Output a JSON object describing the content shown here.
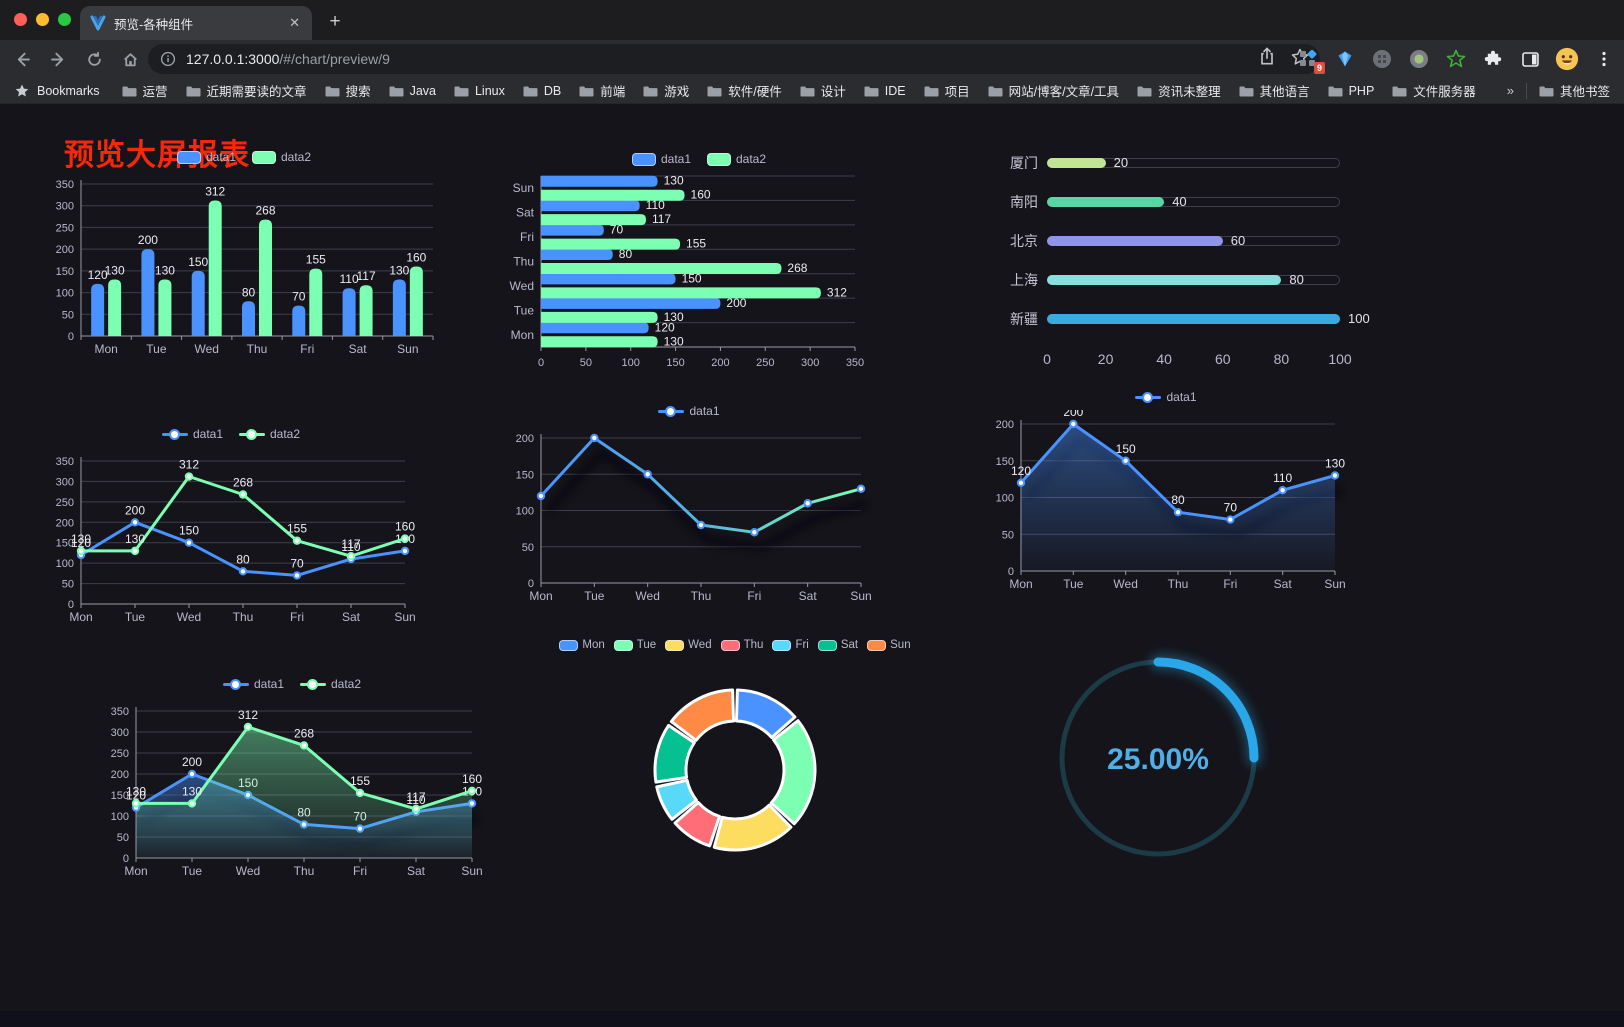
{
  "browser": {
    "tab_title": "预览-各种组件",
    "tab_close_glyph": "✕",
    "new_tab_glyph": "+",
    "url_host": "127.0.0.1:3000",
    "url_path": "/#/chart/preview/9",
    "extension_badge": "9",
    "bookmarks_label": "Bookmarks",
    "bookmarks": [
      "运营",
      "近期需要读的文章",
      "搜索",
      "Java",
      "Linux",
      "DB",
      "前端",
      "游戏",
      "软件/硬件",
      "设计",
      "IDE",
      "项目",
      "网站/博客/文章/工具",
      "资讯未整理",
      "其他语言",
      "PHP",
      "文件服务器"
    ],
    "overflow_chevron": "»",
    "other_bookmarks": "其他书签"
  },
  "page": {
    "title": "预览大屏报表",
    "title_color": "#f5270d"
  },
  "colors": {
    "accent_blue": "#4992ff",
    "accent_green": "#7cffb2",
    "axis_text": "#b9b8ce",
    "grid_line": "#3f3e4a",
    "axis_line": "#9997a8",
    "value_text": "#ececf2",
    "palette": [
      "#4992ff",
      "#7cffb2",
      "#fddd60",
      "#ff6e76",
      "#58d9f9",
      "#05c091",
      "#ff8a45"
    ]
  },
  "chart_data": [
    {
      "id": "bar-vertical",
      "type": "bar",
      "categories": [
        "Mon",
        "Tue",
        "Wed",
        "Thu",
        "Fri",
        "Sat",
        "Sun"
      ],
      "series": [
        {
          "name": "data1",
          "color": "#4992ff",
          "values": [
            120,
            200,
            150,
            80,
            70,
            110,
            130
          ]
        },
        {
          "name": "data2",
          "color": "#7cffb2",
          "values": [
            130,
            130,
            312,
            268,
            155,
            117,
            160
          ]
        }
      ],
      "ylim": [
        0,
        350
      ],
      "yticks": [
        0,
        50,
        100,
        150,
        200,
        250,
        300,
        350
      ],
      "value_labels": true,
      "legend": "pill",
      "grid": true
    },
    {
      "id": "bar-horizontal",
      "type": "bar-horizontal",
      "categories_top_to_bottom": [
        "Sun",
        "Sat",
        "Fri",
        "Thu",
        "Wed",
        "Tue",
        "Mon"
      ],
      "series": [
        {
          "name": "data1",
          "color": "#4992ff",
          "values": [
            130,
            110,
            70,
            80,
            150,
            200,
            120
          ]
        },
        {
          "name": "data2",
          "color": "#7cffb2",
          "values": [
            160,
            117,
            155,
            268,
            312,
            130,
            130
          ]
        }
      ],
      "xlim": [
        0,
        350
      ],
      "xticks": [
        0,
        50,
        100,
        150,
        200,
        250,
        300,
        350
      ],
      "value_labels": true,
      "legend": "pill",
      "grid": true
    },
    {
      "id": "city-progress",
      "type": "bar-progress",
      "xlim": [
        0,
        100
      ],
      "xticks": [
        0,
        20,
        40,
        60,
        80,
        100
      ],
      "items": [
        {
          "label": "厦门",
          "value": 20,
          "color": "#c0e695"
        },
        {
          "label": "南阳",
          "value": 40,
          "color": "#57d6a6"
        },
        {
          "label": "北京",
          "value": 60,
          "color": "#8f94e8"
        },
        {
          "label": "上海",
          "value": 80,
          "color": "#86e0dd"
        },
        {
          "label": "新疆",
          "value": 100,
          "color": "#3aabe0"
        }
      ],
      "track_color": "#3f3f4a"
    },
    {
      "id": "line-dual",
      "type": "line",
      "categories": [
        "Mon",
        "Tue",
        "Wed",
        "Thu",
        "Fri",
        "Sat",
        "Sun"
      ],
      "series": [
        {
          "name": "data1",
          "color": "#4992ff",
          "values": [
            120,
            200,
            150,
            80,
            70,
            110,
            130
          ]
        },
        {
          "name": "data2",
          "color": "#7cffb2",
          "values": [
            130,
            130,
            312,
            268,
            155,
            117,
            160
          ]
        }
      ],
      "ylim": [
        0,
        350
      ],
      "yticks": [
        0,
        50,
        100,
        150,
        200,
        250,
        300,
        350
      ],
      "value_labels": true,
      "legend": "line",
      "grid": true
    },
    {
      "id": "line-gradient",
      "type": "line",
      "categories": [
        "Mon",
        "Tue",
        "Wed",
        "Thu",
        "Fri",
        "Sat",
        "Sun"
      ],
      "series": [
        {
          "name": "data1",
          "color": "#4992ff",
          "marker_color": "#4992ff",
          "gradient": [
            "#4992ff",
            "#55b4e0",
            "#7cffb2"
          ],
          "shadow": true,
          "values": [
            120,
            200,
            150,
            80,
            70,
            110,
            130
          ]
        }
      ],
      "ylim": [
        0,
        200
      ],
      "yticks": [
        0,
        50,
        100,
        150,
        200
      ],
      "value_labels": false,
      "legend": "line",
      "grid": true
    },
    {
      "id": "area-single",
      "type": "line",
      "categories": [
        "Mon",
        "Tue",
        "Wed",
        "Thu",
        "Fri",
        "Sat",
        "Sun"
      ],
      "series": [
        {
          "name": "data1",
          "color": "#4992ff",
          "area": true,
          "shadow": true,
          "values": [
            120,
            200,
            150,
            80,
            70,
            110,
            130
          ]
        }
      ],
      "ylim": [
        0,
        200
      ],
      "yticks": [
        0,
        50,
        100,
        150,
        200
      ],
      "value_labels": true,
      "legend": "line",
      "grid": true
    },
    {
      "id": "area-dual",
      "type": "line",
      "categories": [
        "Mon",
        "Tue",
        "Wed",
        "Thu",
        "Fri",
        "Sat",
        "Sun"
      ],
      "series": [
        {
          "name": "data1",
          "color": "#4992ff",
          "area": true,
          "shadow": true,
          "values": [
            120,
            200,
            150,
            80,
            70,
            110,
            130
          ]
        },
        {
          "name": "data2",
          "color": "#7cffb2",
          "area": true,
          "values": [
            130,
            130,
            312,
            268,
            155,
            117,
            160
          ]
        }
      ],
      "ylim": [
        0,
        350
      ],
      "yticks": [
        0,
        50,
        100,
        150,
        200,
        250,
        300,
        350
      ],
      "value_labels": true,
      "legend": "line",
      "grid": true
    },
    {
      "id": "donut",
      "type": "pie",
      "donut": true,
      "categories": [
        "Mon",
        "Tue",
        "Wed",
        "Thu",
        "Fri",
        "Sat",
        "Sun"
      ],
      "values": [
        120,
        200,
        150,
        80,
        70,
        110,
        130
      ],
      "colors": [
        "#4992ff",
        "#7cffb2",
        "#fddd60",
        "#ff6e76",
        "#58d9f9",
        "#05c091",
        "#ff8a45"
      ],
      "legend": "pill-sm"
    },
    {
      "id": "gauge",
      "type": "gauge",
      "percent": 25,
      "label": "25.00%",
      "color": "#2aa7e8",
      "track_color": "#1c3b47",
      "text_color": "#4fb0e8"
    }
  ]
}
